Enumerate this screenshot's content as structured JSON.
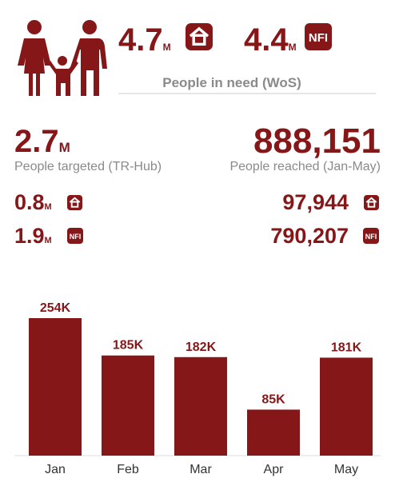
{
  "people_in_need": {
    "shelter": {
      "value": "4.7",
      "unit": "M"
    },
    "nfi": {
      "value": "4.4",
      "unit": "M"
    },
    "caption": "People in need (WoS)"
  },
  "targeted": {
    "value": "2.7",
    "unit": "M",
    "label": "People targeted (TR-Hub)",
    "shelter": {
      "value": "0.8",
      "unit": "M"
    },
    "nfi": {
      "value": "1.9",
      "unit": "M"
    }
  },
  "reached": {
    "value": "888,151",
    "label": "People reached (Jan-May)",
    "shelter": "97,944",
    "nfi": "790,207"
  },
  "icons": {
    "nfi": "NFI"
  },
  "chart_data": {
    "type": "bar",
    "categories": [
      "Jan",
      "Feb",
      "Mar",
      "Apr",
      "May"
    ],
    "values": [
      254,
      185,
      182,
      85,
      181
    ],
    "value_labels": [
      "254K",
      "185K",
      "182K",
      "85K",
      "181K"
    ],
    "color": "#861719"
  }
}
